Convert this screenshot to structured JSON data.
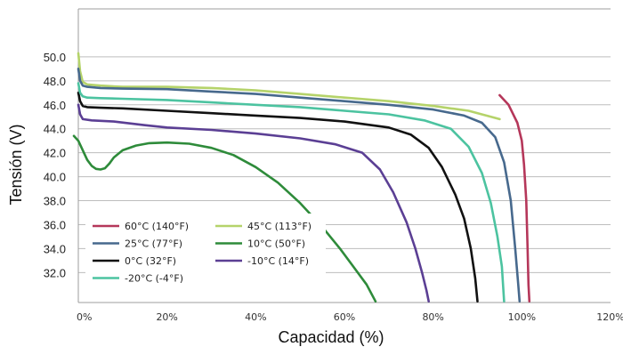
{
  "chart_data": {
    "type": "line",
    "xlabel": "Capacidad (%)",
    "ylabel": "Tensión (V)",
    "xlim": [
      0,
      120
    ],
    "ylim": [
      29.5,
      54.0
    ],
    "x_tick_labels": [
      "0%",
      "20%",
      "40%",
      "60%",
      "80%",
      "100%",
      "120%"
    ],
    "x_tick_values": [
      0,
      20,
      40,
      60,
      80,
      100,
      120
    ],
    "y_tick_labels": [
      "32.0",
      "34.0",
      "36.0",
      "38.0",
      "40.0",
      "42.0",
      "44.0",
      "46.0",
      "48.0",
      "50.0"
    ],
    "y_tick_values": [
      32,
      34,
      36,
      38,
      40,
      42,
      44,
      46,
      48,
      50
    ],
    "grid": "horizontal",
    "legend_placement": "bottom-left",
    "series": [
      {
        "name": "60°C (140°F)",
        "color": "#b5375a",
        "points": [
          [
            95,
            46.8
          ],
          [
            97,
            46.0
          ],
          [
            99,
            44.5
          ],
          [
            100,
            43.0
          ],
          [
            100.5,
            41.0
          ],
          [
            101,
            38.0
          ],
          [
            101.3,
            34.0
          ],
          [
            101.5,
            31.0
          ],
          [
            101.7,
            29.6
          ]
        ]
      },
      {
        "name": "45°C (113°F)",
        "color": "#b5d36a",
        "points": [
          [
            0,
            50.3
          ],
          [
            0.4,
            48.8
          ],
          [
            1,
            47.9
          ],
          [
            2,
            47.7
          ],
          [
            5,
            47.6
          ],
          [
            10,
            47.5
          ],
          [
            20,
            47.5
          ],
          [
            30,
            47.4
          ],
          [
            40,
            47.2
          ],
          [
            50,
            46.9
          ],
          [
            60,
            46.6
          ],
          [
            70,
            46.3
          ],
          [
            80,
            45.9
          ],
          [
            88,
            45.5
          ],
          [
            92,
            45.1
          ],
          [
            95,
            44.8
          ]
        ]
      },
      {
        "name": "25°C (77°F)",
        "color": "#47698d",
        "points": [
          [
            0,
            49.0
          ],
          [
            0.4,
            48.0
          ],
          [
            1,
            47.6
          ],
          [
            2,
            47.5
          ],
          [
            5,
            47.4
          ],
          [
            10,
            47.35
          ],
          [
            20,
            47.3
          ],
          [
            30,
            47.1
          ],
          [
            40,
            46.9
          ],
          [
            50,
            46.6
          ],
          [
            60,
            46.3
          ],
          [
            70,
            46.0
          ],
          [
            80,
            45.6
          ],
          [
            87,
            45.1
          ],
          [
            91,
            44.5
          ],
          [
            94,
            43.3
          ],
          [
            96,
            41.2
          ],
          [
            97.5,
            38.0
          ],
          [
            98.5,
            34.0
          ],
          [
            99.2,
            31.0
          ],
          [
            99.5,
            29.6
          ]
        ]
      },
      {
        "name": "10°C (50°F)",
        "color": "#2e8b3a",
        "points": [
          [
            -1,
            43.4
          ],
          [
            0,
            43.0
          ],
          [
            1,
            42.2
          ],
          [
            2,
            41.4
          ],
          [
            3,
            40.9
          ],
          [
            4,
            40.65
          ],
          [
            5,
            40.6
          ],
          [
            6,
            40.7
          ],
          [
            7,
            41.1
          ],
          [
            8,
            41.6
          ],
          [
            10,
            42.2
          ],
          [
            13,
            42.6
          ],
          [
            16,
            42.8
          ],
          [
            20,
            42.85
          ],
          [
            25,
            42.75
          ],
          [
            30,
            42.4
          ],
          [
            35,
            41.8
          ],
          [
            40,
            40.8
          ],
          [
            45,
            39.5
          ],
          [
            50,
            37.8
          ],
          [
            55,
            35.8
          ],
          [
            59,
            34.0
          ],
          [
            62,
            32.5
          ],
          [
            65,
            31.0
          ],
          [
            67,
            29.6
          ]
        ]
      },
      {
        "name": "0°C (32°F)",
        "color": "#111111",
        "points": [
          [
            0,
            47.0
          ],
          [
            0.4,
            46.3
          ],
          [
            1,
            45.9
          ],
          [
            2,
            45.8
          ],
          [
            5,
            45.75
          ],
          [
            10,
            45.7
          ],
          [
            20,
            45.5
          ],
          [
            30,
            45.3
          ],
          [
            40,
            45.1
          ],
          [
            50,
            44.9
          ],
          [
            60,
            44.6
          ],
          [
            70,
            44.1
          ],
          [
            75,
            43.5
          ],
          [
            79,
            42.4
          ],
          [
            82,
            40.8
          ],
          [
            85,
            38.5
          ],
          [
            87,
            36.5
          ],
          [
            88.5,
            34.0
          ],
          [
            89.5,
            31.5
          ],
          [
            90,
            29.6
          ]
        ]
      },
      {
        "name": "-10°C (14°F)",
        "color": "#5b3f94",
        "points": [
          [
            0,
            46.0
          ],
          [
            0.4,
            45.2
          ],
          [
            1,
            44.8
          ],
          [
            3,
            44.7
          ],
          [
            8,
            44.6
          ],
          [
            15,
            44.3
          ],
          [
            20,
            44.1
          ],
          [
            30,
            43.9
          ],
          [
            40,
            43.6
          ],
          [
            50,
            43.2
          ],
          [
            58,
            42.7
          ],
          [
            64,
            42.0
          ],
          [
            68,
            40.6
          ],
          [
            71,
            38.7
          ],
          [
            74,
            36.2
          ],
          [
            76,
            34.0
          ],
          [
            77.5,
            32.0
          ],
          [
            78.5,
            30.5
          ],
          [
            79,
            29.6
          ]
        ]
      },
      {
        "name": "-20°C (-4°F)",
        "color": "#4cc3a0",
        "points": [
          [
            0,
            47.8
          ],
          [
            0.4,
            47.0
          ],
          [
            1,
            46.7
          ],
          [
            2,
            46.6
          ],
          [
            5,
            46.55
          ],
          [
            10,
            46.5
          ],
          [
            20,
            46.4
          ],
          [
            30,
            46.2
          ],
          [
            40,
            46.0
          ],
          [
            50,
            45.8
          ],
          [
            60,
            45.5
          ],
          [
            70,
            45.2
          ],
          [
            78,
            44.7
          ],
          [
            84,
            44.0
          ],
          [
            88,
            42.5
          ],
          [
            91,
            40.3
          ],
          [
            93,
            37.8
          ],
          [
            94.5,
            35.0
          ],
          [
            95.5,
            32.5
          ],
          [
            96,
            29.6
          ]
        ]
      }
    ]
  }
}
